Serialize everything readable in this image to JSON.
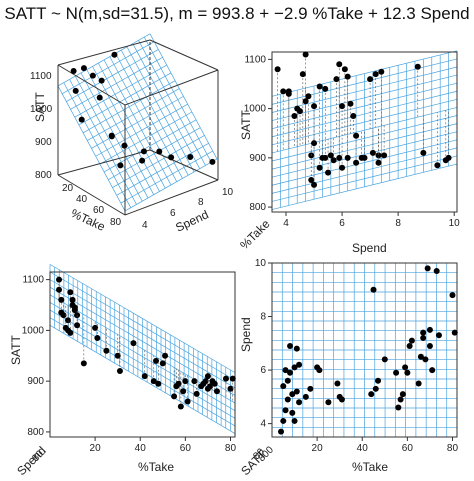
{
  "title": "SATT ~ N(m,sd=31.5), m = 993.8 + −2.9 %Take + 12.3 Spend",
  "colors": {
    "grid": "#4aa3df",
    "point": "#000000",
    "axis": "#333333"
  },
  "axis_labels": {
    "satt": "SATT",
    "take": "%Take",
    "spend": "Spend"
  },
  "corner_labels": {
    "spend_small": "Spend",
    "take_small": "%Take",
    "satt_small": "SATT"
  },
  "ticks": {
    "satt": [
      "800",
      "900",
      "1000",
      "1100"
    ],
    "take": [
      "20",
      "40",
      "60",
      "80"
    ],
    "spend": [
      "4",
      "6",
      "8",
      "10"
    ],
    "take3d": [
      "20",
      "40",
      "60",
      "80"
    ],
    "spend3d": [
      "4",
      "6",
      "8",
      "10"
    ],
    "corner_take": "80",
    "corner_spend": "80",
    "corner_satt": "800"
  },
  "chart_data": [
    {
      "panel": "top-left",
      "type": "scatter",
      "subtype": "3d-scatter-with-regression-plane",
      "xlabel": "%Take",
      "ylabel": "Spend",
      "zlabel": "SATT",
      "xlim": [
        0,
        80
      ],
      "ylim": [
        4,
        10
      ],
      "zlim": [
        800,
        1100
      ],
      "plane": {
        "intercept": 993.8,
        "coef_take": -2.9,
        "coef_spend": 12.3,
        "sd": 31.5
      },
      "x": [
        9,
        5,
        12,
        7,
        4,
        15,
        10,
        21,
        35,
        55,
        44,
        62,
        70,
        80,
        66,
        50,
        71,
        58
      ],
      "y": [
        5.2,
        6.0,
        4.5,
        7.3,
        4.8,
        5.9,
        6.3,
        4.4,
        5.6,
        6.6,
        5.1,
        6.1,
        8.8,
        9.7,
        7.0,
        5.6,
        7.5,
        4.9
      ],
      "z": [
        1090,
        1055,
        1040,
        1100,
        1080,
        1010,
        1045,
        975,
        935,
        910,
        955,
        900,
        890,
        880,
        920,
        930,
        905,
        895
      ]
    },
    {
      "panel": "top-right",
      "type": "scatter",
      "xlabel": "Spend",
      "ylabel": "SATT",
      "xlim": [
        3.5,
        10.1
      ],
      "ylim": [
        790,
        1115
      ],
      "x": [
        3.7,
        3.9,
        4.1,
        4.1,
        4.3,
        4.4,
        4.5,
        4.6,
        4.7,
        4.7,
        4.8,
        4.9,
        4.9,
        5.0,
        5.0,
        5.0,
        5.2,
        5.2,
        5.3,
        5.4,
        5.4,
        5.5,
        5.6,
        5.7,
        5.8,
        5.9,
        5.9,
        6.0,
        6.0,
        6.1,
        6.2,
        6.2,
        6.3,
        6.4,
        6.5,
        6.5,
        6.7,
        6.8,
        7.0,
        7.1,
        7.2,
        7.3,
        7.3,
        7.4,
        7.5,
        8.7,
        8.9,
        9.4,
        9.7,
        9.8
      ],
      "y": [
        1080,
        1035,
        1035,
        1030,
        985,
        1000,
        995,
        1070,
        1110,
        1015,
        1025,
        905,
        855,
        845,
        930,
        1005,
        880,
        1045,
        900,
        1040,
        900,
        870,
        905,
        895,
        1060,
        900,
        1090,
        1005,
        880,
        1080,
        900,
        1065,
        1010,
        985,
        890,
        945,
        900,
        900,
        1060,
        910,
        1070,
        905,
        890,
        1075,
        905,
        1085,
        910,
        885,
        895,
        900
      ],
      "plane": {
        "intercept": 993.8,
        "coef_take": -2.9,
        "coef_spend": 12.3,
        "sd": 31.5
      }
    },
    {
      "panel": "bottom-left",
      "type": "scatter",
      "xlabel": "%Take",
      "ylabel": "SATT",
      "xlim": [
        0,
        82
      ],
      "ylim": [
        790,
        1115
      ],
      "x": [
        4,
        4,
        5,
        5,
        6,
        7,
        8,
        8,
        9,
        9,
        10,
        10,
        11,
        11,
        12,
        12,
        15,
        20,
        21,
        25,
        30,
        31,
        37,
        42,
        46,
        47,
        48,
        50,
        51,
        55,
        56,
        57,
        58,
        59,
        60,
        61,
        64,
        65,
        67,
        68,
        69,
        70,
        70,
        71,
        72,
        73,
        74,
        78,
        80,
        81
      ],
      "y": [
        1100,
        1080,
        1060,
        1035,
        1030,
        1005,
        1020,
        1000,
        995,
        1075,
        1060,
        1050,
        1045,
        1040,
        1030,
        1010,
        935,
        1005,
        985,
        960,
        950,
        920,
        975,
        910,
        900,
        940,
        895,
        935,
        950,
        870,
        890,
        895,
        850,
        880,
        900,
        860,
        900,
        875,
        890,
        895,
        900,
        885,
        910,
        890,
        900,
        895,
        880,
        905,
        885,
        905
      ],
      "plane": {
        "intercept": 993.8,
        "coef_take": -2.9,
        "coef_spend": 12.3,
        "sd": 31.5
      }
    },
    {
      "panel": "bottom-right",
      "type": "scatter",
      "xlabel": "%Take",
      "ylabel": "Spend",
      "xlim": [
        0,
        82
      ],
      "ylim": [
        3.5,
        10
      ],
      "x": [
        4,
        5,
        5,
        6,
        6,
        7,
        7,
        8,
        8,
        9,
        9,
        10,
        10,
        11,
        11,
        12,
        12,
        15,
        17,
        20,
        21,
        25,
        29,
        30,
        31,
        44,
        45,
        46,
        47,
        50,
        55,
        56,
        57,
        58,
        59,
        60,
        61,
        62,
        65,
        66,
        67,
        67,
        68,
        69,
        70,
        70,
        71,
        73,
        74,
        80,
        81
      ],
      "y": [
        3.7,
        4.1,
        5.4,
        4.5,
        6.0,
        4.9,
        5.6,
        5.9,
        6.9,
        4.4,
        5.1,
        4.1,
        6.1,
        5.2,
        6.8,
        4.8,
        6.2,
        5.0,
        5.3,
        6.1,
        6.0,
        4.8,
        5.5,
        5.0,
        4.9,
        5.1,
        9.0,
        5.3,
        5.6,
        6.4,
        5.9,
        4.6,
        4.9,
        5.1,
        6.1,
        5.9,
        6.9,
        7.1,
        5.5,
        6.5,
        7.2,
        7.4,
        6.4,
        9.8,
        6.9,
        7.5,
        6.0,
        9.7,
        7.3,
        8.8,
        7.4
      ]
    }
  ]
}
